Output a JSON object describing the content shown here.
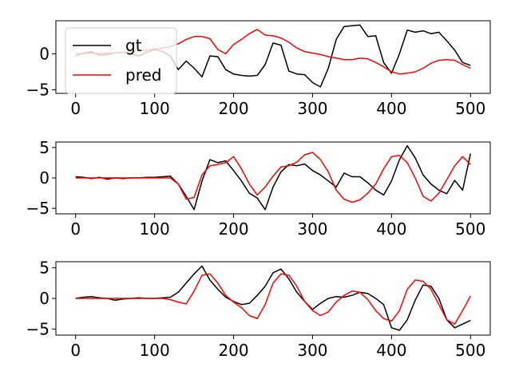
{
  "figure": {
    "background": "#ffffff"
  },
  "chart_data": [
    {
      "type": "line",
      "xlim": [
        -25,
        525
      ],
      "ylim": [
        -5.5,
        4.6
      ],
      "xticks": [
        0,
        100,
        200,
        300,
        400,
        500
      ],
      "yticks": [
        -5,
        0
      ],
      "grid": false,
      "legend": {
        "position": "upper-left",
        "entries": [
          "gt",
          "pred"
        ]
      },
      "series": [
        {
          "name": "gt",
          "color": "#000000",
          "x": [
            0,
            10,
            20,
            30,
            40,
            50,
            60,
            70,
            80,
            90,
            100,
            110,
            120,
            130,
            140,
            150,
            160,
            170,
            180,
            190,
            200,
            210,
            220,
            230,
            240,
            250,
            260,
            270,
            280,
            290,
            300,
            310,
            320,
            330,
            340,
            350,
            360,
            370,
            380,
            390,
            400,
            410,
            420,
            430,
            440,
            450,
            460,
            470,
            480,
            490,
            500
          ],
          "y": [
            -0.3,
            0.1,
            0.3,
            -0.2,
            -0.1,
            0.1,
            0.2,
            0.0,
            -0.3,
            0.2,
            0.6,
            0.3,
            -0.3,
            -2.2,
            -1.0,
            -2.0,
            -3.2,
            -0.3,
            -0.4,
            -2.2,
            -2.8,
            -3.0,
            -3.1,
            -3.0,
            -1.5,
            1.5,
            1.2,
            -2.4,
            -2.8,
            -2.9,
            -4.0,
            -4.6,
            -2.0,
            2.0,
            3.8,
            3.9,
            4.0,
            2.4,
            2.5,
            -1.2,
            -2.7,
            0.0,
            3.3,
            3.0,
            3.2,
            2.8,
            3.0,
            1.8,
            0.5,
            -1.2,
            -1.6
          ]
        },
        {
          "name": "pred",
          "color": "#ff0000",
          "x": [
            0,
            10,
            20,
            30,
            40,
            50,
            60,
            70,
            80,
            90,
            100,
            110,
            120,
            130,
            140,
            150,
            160,
            170,
            180,
            190,
            200,
            210,
            220,
            230,
            240,
            250,
            260,
            270,
            280,
            290,
            300,
            310,
            320,
            330,
            340,
            350,
            360,
            370,
            380,
            390,
            400,
            410,
            420,
            430,
            440,
            450,
            460,
            470,
            480,
            490,
            500
          ],
          "y": [
            0.0,
            0.0,
            0.1,
            0.0,
            0.1,
            0.1,
            0.2,
            0.3,
            0.4,
            0.5,
            0.7,
            0.8,
            1.0,
            1.4,
            2.0,
            2.4,
            2.4,
            2.1,
            0.6,
            0.0,
            1.3,
            2.0,
            2.8,
            3.4,
            2.6,
            2.5,
            2.2,
            1.6,
            0.8,
            0.3,
            0.1,
            -0.1,
            -0.4,
            -0.6,
            -0.8,
            -0.8,
            -0.6,
            -0.7,
            -1.2,
            -1.8,
            -2.5,
            -2.8,
            -2.7,
            -2.5,
            -2.0,
            -1.3,
            -0.9,
            -0.8,
            -0.9,
            -1.5,
            -2.0
          ]
        }
      ]
    },
    {
      "type": "line",
      "xlim": [
        -25,
        525
      ],
      "ylim": [
        -5.9,
        5.9
      ],
      "xticks": [
        0,
        100,
        200,
        300,
        400,
        500
      ],
      "yticks": [
        -5,
        0,
        5
      ],
      "grid": false,
      "series": [
        {
          "name": "gt",
          "color": "#000000",
          "x": [
            0,
            10,
            20,
            30,
            40,
            50,
            60,
            70,
            80,
            90,
            100,
            110,
            120,
            130,
            140,
            150,
            160,
            170,
            180,
            190,
            200,
            210,
            220,
            230,
            240,
            250,
            260,
            270,
            280,
            290,
            300,
            310,
            320,
            330,
            340,
            350,
            360,
            370,
            380,
            390,
            400,
            410,
            420,
            430,
            440,
            450,
            460,
            470,
            480,
            490,
            500
          ],
          "y": [
            0.2,
            0.1,
            -0.1,
            0.1,
            -0.2,
            0.0,
            -0.1,
            0.0,
            0.0,
            0.1,
            0.1,
            0.2,
            0.3,
            -1.0,
            -3.0,
            -5.2,
            -0.5,
            3.0,
            2.5,
            2.8,
            1.2,
            -0.5,
            -2.5,
            -3.3,
            -5.2,
            -1.5,
            1.0,
            2.2,
            2.0,
            2.3,
            1.2,
            0.5,
            -0.5,
            -1.5,
            0.8,
            0.2,
            0.2,
            -0.8,
            -2.0,
            -2.8,
            -0.5,
            3.0,
            5.3,
            3.3,
            0.5,
            -1.0,
            -2.0,
            -2.6,
            -0.4,
            -2.0,
            4.0
          ]
        },
        {
          "name": "pred",
          "color": "#ff0000",
          "x": [
            0,
            10,
            20,
            30,
            40,
            50,
            60,
            70,
            80,
            90,
            100,
            110,
            120,
            130,
            140,
            150,
            160,
            170,
            180,
            190,
            200,
            210,
            220,
            230,
            240,
            250,
            260,
            270,
            280,
            290,
            300,
            310,
            320,
            330,
            340,
            350,
            360,
            370,
            380,
            390,
            400,
            410,
            420,
            430,
            440,
            450,
            460,
            470,
            480,
            490,
            500
          ],
          "y": [
            0.0,
            0.0,
            0.0,
            0.0,
            0.0,
            0.0,
            0.0,
            0.0,
            0.0,
            0.0,
            0.0,
            0.0,
            0.0,
            -1.0,
            -3.5,
            -3.2,
            0.5,
            2.0,
            2.2,
            2.5,
            3.5,
            1.5,
            -1.0,
            -2.8,
            -1.5,
            0.3,
            1.8,
            2.0,
            2.6,
            3.8,
            4.2,
            3.0,
            1.0,
            -2.0,
            -3.5,
            -4.0,
            -3.6,
            -2.5,
            -1.0,
            1.5,
            3.5,
            3.7,
            2.5,
            0.0,
            -3.0,
            -3.8,
            -2.5,
            -0.3,
            2.0,
            3.5,
            2.2
          ]
        }
      ]
    },
    {
      "type": "line",
      "xlim": [
        -25,
        525
      ],
      "ylim": [
        -6,
        6
      ],
      "xticks": [
        0,
        100,
        200,
        300,
        400,
        500
      ],
      "yticks": [
        -5,
        0,
        5
      ],
      "grid": false,
      "series": [
        {
          "name": "gt",
          "color": "#000000",
          "x": [
            0,
            10,
            20,
            30,
            40,
            50,
            60,
            70,
            80,
            90,
            100,
            110,
            120,
            130,
            140,
            150,
            160,
            170,
            180,
            190,
            200,
            210,
            220,
            230,
            240,
            250,
            260,
            270,
            280,
            290,
            300,
            310,
            320,
            330,
            340,
            350,
            360,
            370,
            380,
            390,
            400,
            410,
            420,
            430,
            440,
            450,
            460,
            470,
            480,
            490,
            500
          ],
          "y": [
            0.0,
            0.2,
            0.3,
            0.1,
            0.0,
            -0.3,
            -0.1,
            0.0,
            0.1,
            0.0,
            0.0,
            0.1,
            0.2,
            1.0,
            2.5,
            4.0,
            5.3,
            3.0,
            1.5,
            0.2,
            -0.5,
            -1.0,
            -0.8,
            0.5,
            2.0,
            4.2,
            4.8,
            3.2,
            1.0,
            -0.5,
            -1.8,
            -0.8,
            0.0,
            0.3,
            0.2,
            0.5,
            1.0,
            0.8,
            0.0,
            -1.0,
            -4.8,
            -5.2,
            -3.5,
            -0.3,
            2.2,
            2.0,
            0.0,
            -3.5,
            -4.8,
            -4.2,
            -3.6
          ]
        },
        {
          "name": "pred",
          "color": "#ff0000",
          "x": [
            0,
            10,
            20,
            30,
            40,
            50,
            60,
            70,
            80,
            90,
            100,
            110,
            120,
            130,
            140,
            150,
            160,
            170,
            180,
            190,
            200,
            210,
            220,
            230,
            240,
            250,
            260,
            270,
            280,
            290,
            300,
            310,
            320,
            330,
            340,
            350,
            360,
            370,
            380,
            390,
            400,
            410,
            420,
            430,
            440,
            450,
            460,
            470,
            480,
            490,
            500
          ],
          "y": [
            0.0,
            0.0,
            0.0,
            0.0,
            0.0,
            0.0,
            0.0,
            0.0,
            0.0,
            0.0,
            0.0,
            0.0,
            -0.2,
            -0.6,
            -0.9,
            1.2,
            3.8,
            4.0,
            2.5,
            0.5,
            -0.6,
            -1.5,
            -2.8,
            -3.3,
            -1.0,
            2.5,
            4.0,
            3.8,
            2.0,
            -0.5,
            -2.0,
            -2.8,
            -2.2,
            -0.6,
            0.5,
            1.2,
            1.0,
            -0.2,
            -2.0,
            -3.3,
            -3.7,
            -2.0,
            1.5,
            3.0,
            2.8,
            1.5,
            -1.0,
            -3.5,
            -4.2,
            -2.0,
            0.4
          ]
        }
      ]
    }
  ]
}
